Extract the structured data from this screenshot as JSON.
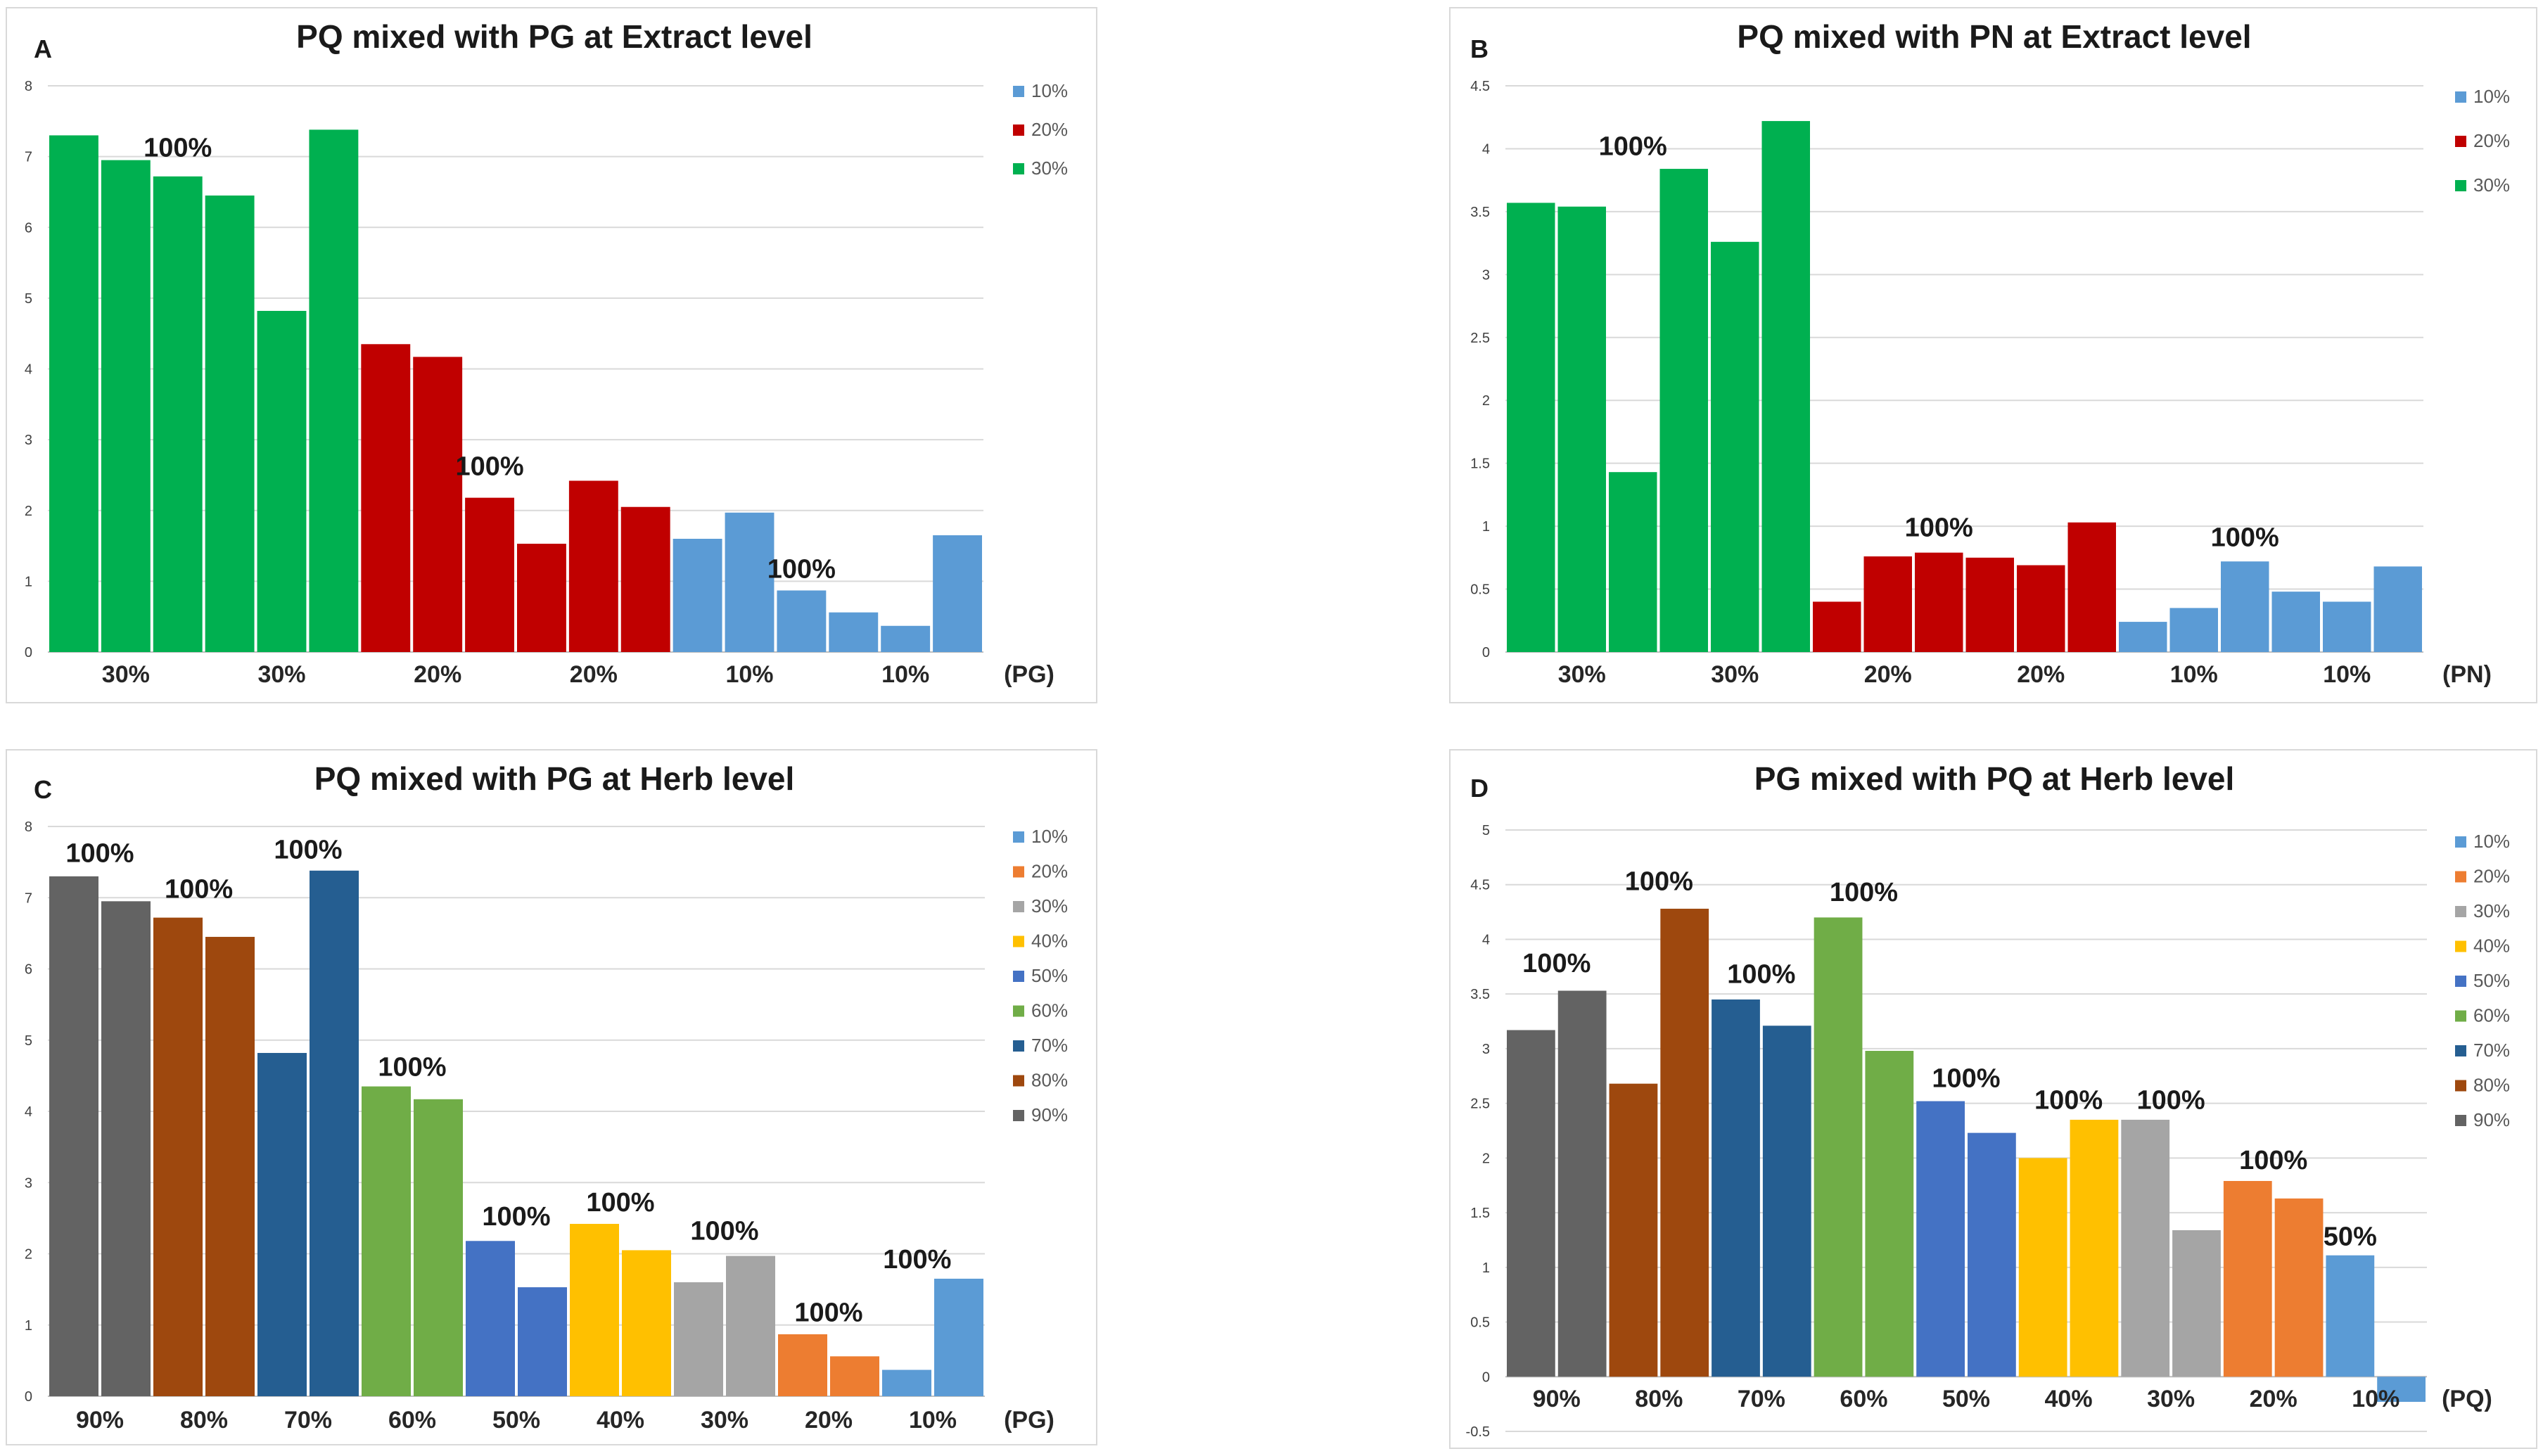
{
  "colors": {
    "c10": "#5b9bd5",
    "c20": "#c00000",
    "c30": "#00b050",
    "o10": "#5b9bd5",
    "o20": "#ed7d31",
    "o30": "#a5a5a5",
    "o40": "#ffc000",
    "o50": "#4472c4",
    "o60": "#70ad47",
    "o70": "#255e91",
    "o80": "#9e480e",
    "o90": "#636363",
    "grid": "#d9d9d9",
    "frame": "#d9d9d9"
  },
  "chart_data": [
    {
      "id": "A",
      "type": "bar",
      "panel_label": "A",
      "title": "PQ mixed with PG at Extract level",
      "ylim": [
        0,
        8
      ],
      "yticks": [
        "0",
        "1",
        "2",
        "3",
        "4",
        "5",
        "6",
        "7",
        "8"
      ],
      "values": [
        7.3,
        6.95,
        6.72,
        6.45,
        4.82,
        7.38,
        4.35,
        4.17,
        2.18,
        1.53,
        2.42,
        2.05,
        1.6,
        1.97,
        0.87,
        0.56,
        0.37,
        1.65
      ],
      "bar_colors": [
        "c30",
        "c30",
        "c30",
        "c30",
        "c30",
        "c30",
        "c20",
        "c20",
        "c20",
        "c20",
        "c20",
        "c20",
        "c10",
        "c10",
        "c10",
        "c10",
        "c10",
        "c10"
      ],
      "xlabels": [
        "30%",
        "30%",
        "20%",
        "20%",
        "10%",
        "10%"
      ],
      "xlabel_suffix": "(PG)",
      "annotations": [
        {
          "text": "100%",
          "bar": 2.5,
          "y": 7.0
        },
        {
          "text": "100%",
          "bar": 8.5,
          "y": 2.5
        },
        {
          "text": "100%",
          "bar": 14.5,
          "y": 1.05
        }
      ],
      "legend": [
        {
          "label": "10%",
          "color": "c10"
        },
        {
          "label": "20%",
          "color": "c20"
        },
        {
          "label": "30%",
          "color": "c30"
        }
      ]
    },
    {
      "id": "B",
      "type": "bar",
      "panel_label": "B",
      "title": "PQ mixed with PN at Extract level",
      "ylim": [
        0,
        4.5
      ],
      "yticks": [
        "0",
        "0.5",
        "1",
        "1.5",
        "2",
        "2.5",
        "3",
        "3.5",
        "4",
        "4.5"
      ],
      "values": [
        3.57,
        3.54,
        1.43,
        3.84,
        3.26,
        4.22,
        0.4,
        0.76,
        0.79,
        0.75,
        0.69,
        1.03,
        0.24,
        0.35,
        0.72,
        0.48,
        0.4,
        0.68
      ],
      "bar_colors": [
        "c30",
        "c30",
        "c30",
        "c30",
        "c30",
        "c30",
        "c20",
        "c20",
        "c20",
        "c20",
        "c20",
        "c20",
        "c10",
        "c10",
        "c10",
        "c10",
        "c10",
        "c10"
      ],
      "xlabels": [
        "30%",
        "30%",
        "20%",
        "20%",
        "10%",
        "10%"
      ],
      "xlabel_suffix": "(PN)",
      "annotations": [
        {
          "text": "100%",
          "bar": 2.5,
          "y": 3.95
        },
        {
          "text": "100%",
          "bar": 8.5,
          "y": 0.92
        },
        {
          "text": "100%",
          "bar": 14.5,
          "y": 0.84
        }
      ],
      "legend": [
        {
          "label": "10%",
          "color": "c10"
        },
        {
          "label": "20%",
          "color": "c20"
        },
        {
          "label": "30%",
          "color": "c30"
        }
      ]
    },
    {
      "id": "C",
      "type": "bar",
      "panel_label": "C",
      "title": "PQ mixed with PG at Herb level",
      "ylim": [
        0,
        8
      ],
      "yticks": [
        "0",
        "1",
        "2",
        "3",
        "4",
        "5",
        "6",
        "7",
        "8"
      ],
      "values": [
        7.3,
        6.95,
        6.72,
        6.45,
        4.82,
        7.38,
        4.35,
        4.17,
        2.18,
        1.53,
        2.42,
        2.05,
        1.6,
        1.97,
        0.87,
        0.56,
        0.37,
        1.65
      ],
      "bar_colors": [
        "o90",
        "o90",
        "o80",
        "o80",
        "o70",
        "o70",
        "o60",
        "o60",
        "o50",
        "o50",
        "o40",
        "o40",
        "o30",
        "o30",
        "o20",
        "o20",
        "o10",
        "o10"
      ],
      "xlabels": [
        "90%",
        "80%",
        "70%",
        "60%",
        "50%",
        "40%",
        "30%",
        "20%",
        "10%"
      ],
      "xlabel_suffix": "(PG)",
      "annotations": [
        {
          "text": "100%",
          "bar": 1.0,
          "y": 7.5
        },
        {
          "text": "100%",
          "bar": 2.9,
          "y": 7.0
        },
        {
          "text": "100%",
          "bar": 5.0,
          "y": 7.55
        },
        {
          "text": "100%",
          "bar": 7.0,
          "y": 4.5
        },
        {
          "text": "100%",
          "bar": 9.0,
          "y": 2.4
        },
        {
          "text": "100%",
          "bar": 11.0,
          "y": 2.6
        },
        {
          "text": "100%",
          "bar": 13.0,
          "y": 2.2
        },
        {
          "text": "100%",
          "bar": 15.0,
          "y": 1.05
        },
        {
          "text": "100%",
          "bar": 16.7,
          "y": 1.8
        }
      ],
      "legend": [
        {
          "label": "10%",
          "color": "o10"
        },
        {
          "label": "20%",
          "color": "o20"
        },
        {
          "label": "30%",
          "color": "o30"
        },
        {
          "label": "40%",
          "color": "o40"
        },
        {
          "label": "50%",
          "color": "o50"
        },
        {
          "label": "60%",
          "color": "o60"
        },
        {
          "label": "70%",
          "color": "o70"
        },
        {
          "label": "80%",
          "color": "o80"
        },
        {
          "label": "90%",
          "color": "o90"
        }
      ]
    },
    {
      "id": "D",
      "type": "bar",
      "panel_label": "D",
      "title": "PG mixed with PQ at Herb level",
      "ylim": [
        -0.5,
        5
      ],
      "yticks": [
        "-0.5",
        "0",
        "0.5",
        "1",
        "1.5",
        "2",
        "2.5",
        "3",
        "3.5",
        "4",
        "4.5",
        "5"
      ],
      "values": [
        3.17,
        3.53,
        2.68,
        4.28,
        3.45,
        3.21,
        4.2,
        2.98,
        2.52,
        2.23,
        2.0,
        2.35,
        2.35,
        1.34,
        1.79,
        1.63,
        1.11,
        -0.23
      ],
      "bar_colors": [
        "o90",
        "o90",
        "o80",
        "o80",
        "o70",
        "o70",
        "o60",
        "o60",
        "o50",
        "o50",
        "o40",
        "o40",
        "o30",
        "o30",
        "o20",
        "o20",
        "o10",
        "o10"
      ],
      "xlabels": [
        "90%",
        "80%",
        "70%",
        "60%",
        "50%",
        "40%",
        "30%",
        "20%",
        "10%"
      ],
      "xlabel_suffix": "(PQ)",
      "annotations": [
        {
          "text": "100%",
          "bar": 1.0,
          "y": 3.7
        },
        {
          "text": "100%",
          "bar": 3.0,
          "y": 4.45
        },
        {
          "text": "100%",
          "bar": 5.0,
          "y": 3.6
        },
        {
          "text": "100%",
          "bar": 7.0,
          "y": 4.35
        },
        {
          "text": "100%",
          "bar": 9.0,
          "y": 2.65
        },
        {
          "text": "100%",
          "bar": 11.0,
          "y": 2.45
        },
        {
          "text": "100%",
          "bar": 13.0,
          "y": 2.45
        },
        {
          "text": "100%",
          "bar": 15.0,
          "y": 1.9
        },
        {
          "text": "50%",
          "bar": 16.5,
          "y": 1.2
        }
      ],
      "legend": [
        {
          "label": "10%",
          "color": "o10"
        },
        {
          "label": "20%",
          "color": "o20"
        },
        {
          "label": "30%",
          "color": "o30"
        },
        {
          "label": "40%",
          "color": "o40"
        },
        {
          "label": "50%",
          "color": "o50"
        },
        {
          "label": "60%",
          "color": "o60"
        },
        {
          "label": "70%",
          "color": "o70"
        },
        {
          "label": "80%",
          "color": "o80"
        },
        {
          "label": "90%",
          "color": "o90"
        }
      ]
    }
  ]
}
